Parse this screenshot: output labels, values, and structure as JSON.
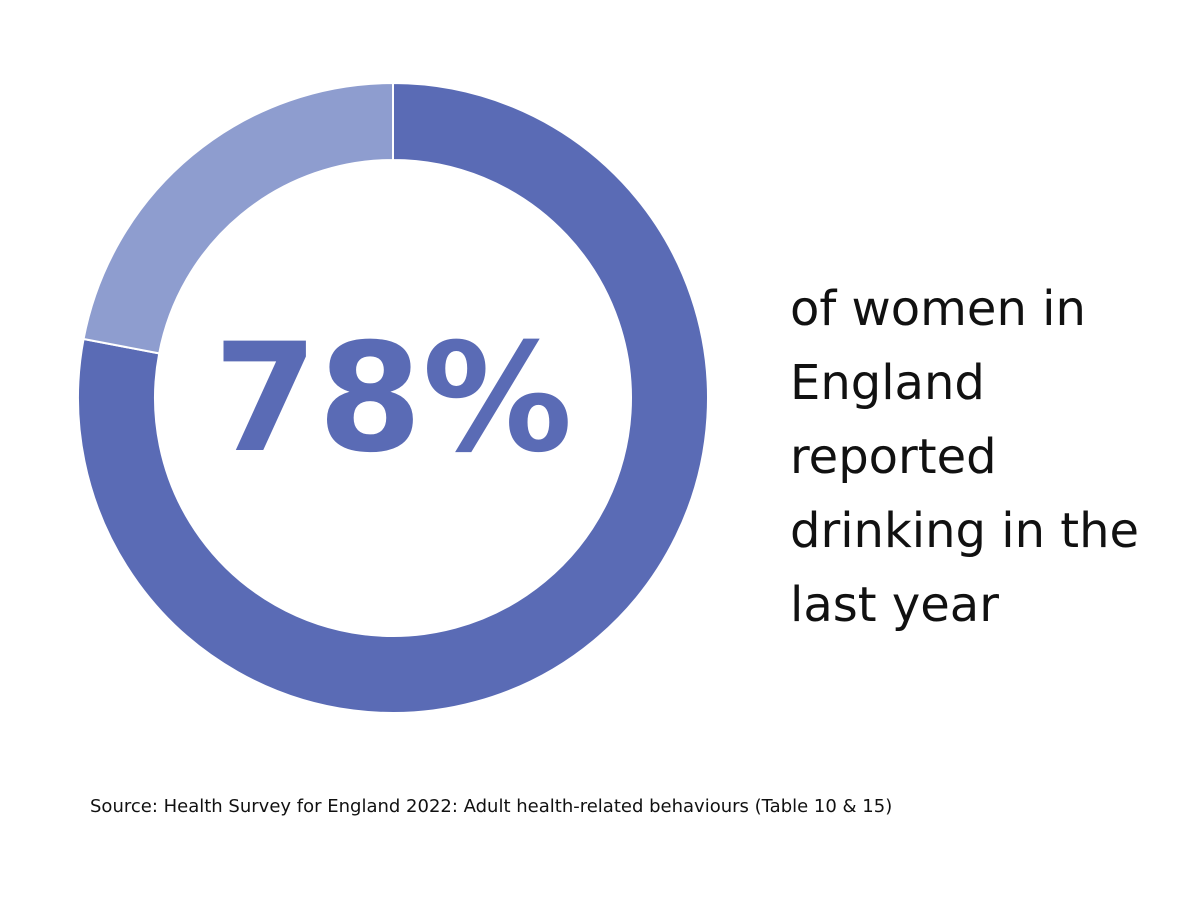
{
  "chart_data": {
    "type": "donut",
    "values": [
      78,
      22
    ],
    "value_labels": [
      "78%",
      null
    ],
    "colors": [
      "#5a6bb5",
      "#8e9dcf"
    ],
    "description": [
      "of women in",
      "England",
      "reported",
      "drinking in the",
      "last year"
    ],
    "source": "Source: Health Survey for England 2022: Adult health-related behaviours (Table 10 & 15)"
  }
}
